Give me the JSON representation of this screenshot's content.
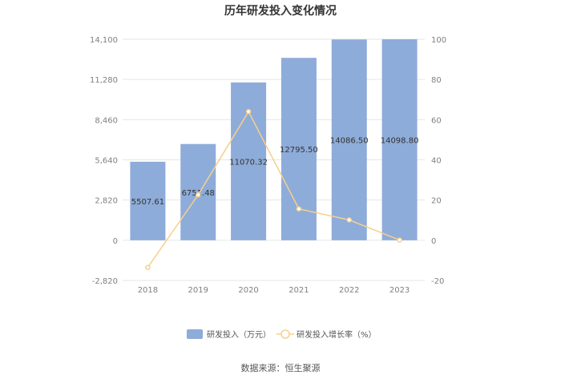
{
  "chart_data": {
    "type": "bar",
    "title": "历年研发投入变化情况",
    "categories": [
      "2018",
      "2019",
      "2020",
      "2021",
      "2022",
      "2023"
    ],
    "series": [
      {
        "name": "研发投入（万元）",
        "type": "bar",
        "axis": "left",
        "color": "#8eacd9",
        "values": [
          5507.61,
          6751.48,
          11070.32,
          12795.5,
          14086.5,
          14098.8
        ],
        "labels": [
          "5507.61",
          "6751.48",
          "11070.32",
          "12795.50",
          "14086.50",
          "14098.80"
        ]
      },
      {
        "name": "研发投入增长率（%）",
        "type": "line",
        "axis": "right",
        "color": "#f5d08c",
        "values": [
          -13.5,
          22.6,
          64.0,
          15.6,
          10.1,
          0.1
        ]
      }
    ],
    "y_left": {
      "ticks": [
        "14,100",
        "11,280",
        "8,460",
        "5,640",
        "2,820",
        "0",
        "-2,820"
      ],
      "tick_values": [
        14100,
        11280,
        8460,
        5640,
        2820,
        0,
        -2820
      ],
      "ylim": [
        -2820,
        14100
      ]
    },
    "y_right": {
      "ticks": [
        "100",
        "80",
        "60",
        "40",
        "20",
        "0",
        "-20"
      ],
      "tick_values": [
        100,
        80,
        60,
        40,
        20,
        0,
        -20
      ],
      "ylim": [
        -20,
        100
      ]
    },
    "grid": true,
    "legend_position": "bottom",
    "source": "数据来源：恒生聚源"
  }
}
